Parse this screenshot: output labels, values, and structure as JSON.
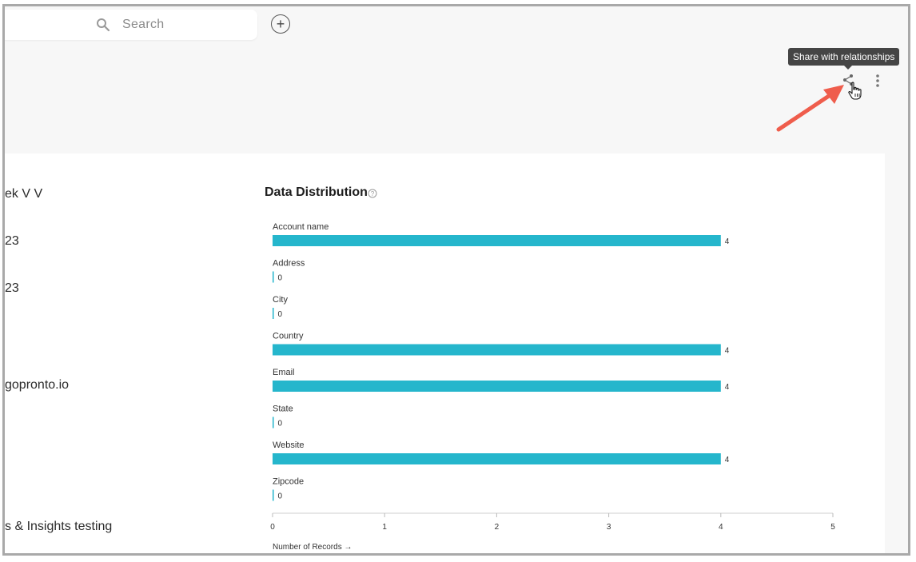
{
  "header": {
    "search_placeholder": "Search",
    "add_label": "+"
  },
  "tooltip": {
    "text": "Share with relationships"
  },
  "left_column": {
    "values": [
      "ek V V",
      "23",
      "23",
      "gopronto.io",
      "s & Insights testing"
    ]
  },
  "data_distribution": {
    "title": "Data Distribution"
  },
  "colors": {
    "bar": "#25b6cc",
    "arrow": "#ef5d4c",
    "tooltip_bg": "#454545"
  },
  "chart_data": {
    "type": "bar",
    "orientation": "horizontal",
    "title": "Data Distribution",
    "categories": [
      "Account name",
      "Address",
      "City",
      "Country",
      "Email",
      "State",
      "Website",
      "Zipcode"
    ],
    "values": [
      4,
      0,
      0,
      4,
      4,
      0,
      4,
      0
    ],
    "xlim": [
      0,
      5
    ],
    "x_ticks": [
      0,
      1,
      2,
      3,
      4,
      5
    ],
    "xlabel": "Number of Records →",
    "grid": false,
    "legend": "none"
  }
}
